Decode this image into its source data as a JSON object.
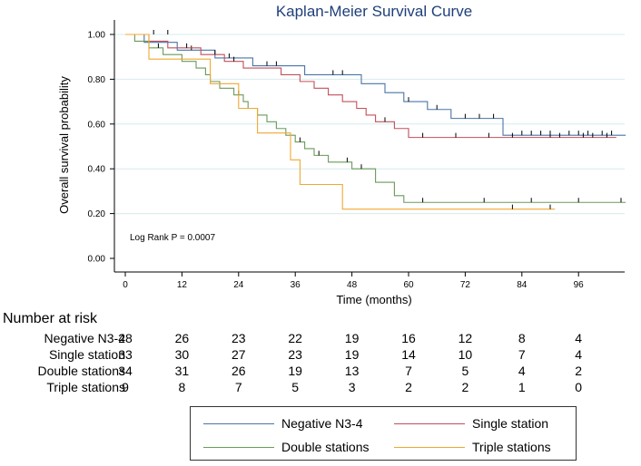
{
  "chart_data": {
    "type": "line",
    "step": true,
    "title": "Kaplan-Meier Survival Curve",
    "xlabel": "Time (months)",
    "ylabel": "Overall survival probability",
    "xlim": [
      0,
      108
    ],
    "ylim": [
      0,
      1.0
    ],
    "xticks": [
      0,
      12,
      24,
      36,
      48,
      60,
      72,
      84,
      96
    ],
    "yticks": [
      0.0,
      0.2,
      0.4,
      0.6,
      0.8,
      1.0
    ],
    "ytick_labels": [
      "0.00",
      "0.20",
      "0.40",
      "0.60",
      "0.80",
      "1.00"
    ],
    "grid": "horizontal",
    "annotation": "Log Rank P = 0.0007",
    "series": [
      {
        "name": "Negative N3-4",
        "color": "#4a74a8",
        "steps": [
          [
            0,
            1.0
          ],
          [
            4,
            0.965
          ],
          [
            11,
            0.93
          ],
          [
            19,
            0.895
          ],
          [
            27,
            0.86
          ],
          [
            38,
            0.82
          ],
          [
            50,
            0.78
          ],
          [
            55,
            0.74
          ],
          [
            59,
            0.7
          ],
          [
            64,
            0.665
          ],
          [
            69,
            0.625
          ],
          [
            80,
            0.55
          ],
          [
            106,
            0.55
          ]
        ],
        "censored": [
          [
            6,
            1.0
          ],
          [
            9,
            1.0
          ],
          [
            14,
            0.93
          ],
          [
            22,
            0.895
          ],
          [
            30,
            0.86
          ],
          [
            32,
            0.86
          ],
          [
            44,
            0.82
          ],
          [
            46,
            0.82
          ],
          [
            60,
            0.7
          ],
          [
            66,
            0.665
          ],
          [
            72,
            0.625
          ],
          [
            75,
            0.625
          ],
          [
            78,
            0.625
          ],
          [
            84,
            0.55
          ],
          [
            86,
            0.55
          ],
          [
            88,
            0.55
          ],
          [
            90,
            0.55
          ],
          [
            94,
            0.55
          ],
          [
            96,
            0.55
          ],
          [
            98,
            0.55
          ],
          [
            101,
            0.55
          ],
          [
            103,
            0.55
          ]
        ]
      },
      {
        "name": "Single station",
        "color": "#c0505a",
        "steps": [
          [
            0,
            1.0
          ],
          [
            5,
            0.97
          ],
          [
            9,
            0.94
          ],
          [
            16,
            0.91
          ],
          [
            21,
            0.88
          ],
          [
            25,
            0.85
          ],
          [
            33,
            0.82
          ],
          [
            37,
            0.79
          ],
          [
            40,
            0.76
          ],
          [
            43,
            0.73
          ],
          [
            46,
            0.7
          ],
          [
            49,
            0.67
          ],
          [
            51,
            0.64
          ],
          [
            53,
            0.61
          ],
          [
            57,
            0.58
          ],
          [
            60,
            0.54
          ],
          [
            104,
            0.54
          ]
        ],
        "censored": [
          [
            13,
            0.94
          ],
          [
            19,
            0.91
          ],
          [
            23,
            0.88
          ],
          [
            55,
            0.61
          ],
          [
            63,
            0.54
          ],
          [
            70,
            0.54
          ],
          [
            77,
            0.54
          ],
          [
            82,
            0.54
          ],
          [
            90,
            0.54
          ],
          [
            92,
            0.54
          ],
          [
            97,
            0.54
          ],
          [
            99,
            0.54
          ],
          [
            102,
            0.54
          ]
        ]
      },
      {
        "name": "Double stations",
        "color": "#6a9a5a",
        "steps": [
          [
            0,
            1.0
          ],
          [
            2,
            0.97
          ],
          [
            5,
            0.94
          ],
          [
            8,
            0.91
          ],
          [
            12,
            0.88
          ],
          [
            15,
            0.85
          ],
          [
            17,
            0.82
          ],
          [
            18,
            0.79
          ],
          [
            20,
            0.76
          ],
          [
            23,
            0.73
          ],
          [
            25,
            0.7
          ],
          [
            26,
            0.67
          ],
          [
            28,
            0.64
          ],
          [
            30,
            0.61
          ],
          [
            32,
            0.58
          ],
          [
            34,
            0.55
          ],
          [
            36,
            0.52
          ],
          [
            38,
            0.49
          ],
          [
            40,
            0.46
          ],
          [
            43,
            0.43
          ],
          [
            48,
            0.4
          ],
          [
            53,
            0.34
          ],
          [
            57,
            0.28
          ],
          [
            59,
            0.25
          ],
          [
            106,
            0.25
          ]
        ],
        "censored": [
          [
            7,
            0.94
          ],
          [
            24,
            0.73
          ],
          [
            37,
            0.52
          ],
          [
            41,
            0.46
          ],
          [
            47,
            0.43
          ],
          [
            50,
            0.4
          ],
          [
            63,
            0.25
          ],
          [
            76,
            0.25
          ],
          [
            86,
            0.25
          ],
          [
            96,
            0.25
          ],
          [
            105,
            0.25
          ]
        ]
      },
      {
        "name": "Triple stations",
        "color": "#f0a830",
        "steps": [
          [
            0,
            1.0
          ],
          [
            5,
            0.89
          ],
          [
            18,
            0.78
          ],
          [
            24,
            0.67
          ],
          [
            28,
            0.56
          ],
          [
            35,
            0.44
          ],
          [
            37,
            0.33
          ],
          [
            46,
            0.22
          ],
          [
            91,
            0.22
          ]
        ],
        "censored": [
          [
            82,
            0.22
          ],
          [
            90,
            0.22
          ]
        ]
      }
    ]
  },
  "risk_table": {
    "heading": "Number at risk",
    "times": [
      0,
      12,
      24,
      36,
      48,
      60,
      72,
      84,
      96
    ],
    "rows": [
      {
        "label": "Negative N3-4",
        "values": [
          "28",
          "26",
          "23",
          "22",
          "19",
          "16",
          "12",
          "8",
          "4"
        ]
      },
      {
        "label": "Single station",
        "values": [
          "33",
          "30",
          "27",
          "23",
          "19",
          "14",
          "10",
          "7",
          "4"
        ]
      },
      {
        "label": "Double stations",
        "values": [
          "34",
          "31",
          "26",
          "19",
          "13",
          "7",
          "5",
          "4",
          "2"
        ]
      },
      {
        "label": "Triple stations",
        "values": [
          "9",
          "8",
          "7",
          "5",
          "3",
          "2",
          "2",
          "1",
          "0"
        ]
      }
    ]
  },
  "legend": [
    {
      "label": "Negative N3-4",
      "color": "#4a74a8"
    },
    {
      "label": "Single station",
      "color": "#c0505a"
    },
    {
      "label": "Double stations",
      "color": "#6a9a5a"
    },
    {
      "label": "Triple stations",
      "color": "#f0a830"
    }
  ]
}
